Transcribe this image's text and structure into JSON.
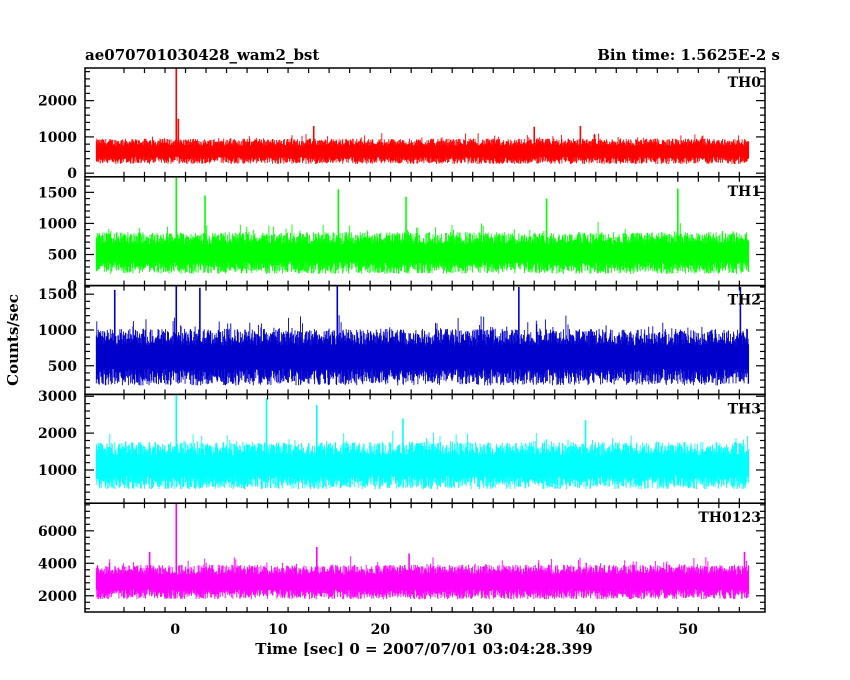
{
  "chart_data": {
    "type": "line",
    "title": "ae070701030428_wam2_bst",
    "subtitle": "Bin time: 1.5625E-2 s",
    "xlabel": "Time [sec] 0 = 2007/07/01 03:04:28.399",
    "ylabel": "Counts/sec",
    "xlim": [
      -8.8,
      57.5
    ],
    "x_ticks": [
      0,
      10,
      20,
      30,
      40,
      50
    ],
    "data_range_x": [
      -7.7,
      55.9
    ],
    "grid": false,
    "panels": [
      {
        "name": "TH0",
        "color": "#ff0000",
        "ylim": [
          -100,
          2900
        ],
        "y_ticks": [
          0,
          1000,
          2000
        ],
        "baseline": 620,
        "spread": 230,
        "floor": 150,
        "peaks": [
          {
            "x": 0.1,
            "y": 2900
          },
          {
            "x": 0.3,
            "y": 1500
          },
          {
            "x": 13.5,
            "y": 1300
          },
          {
            "x": 39.5,
            "y": 1300
          },
          {
            "x": 35.0,
            "y": 1280
          }
        ]
      },
      {
        "name": "TH1",
        "color": "#00ff00",
        "ylim": [
          0,
          1750
        ],
        "y_ticks": [
          0,
          500,
          1000,
          1500
        ],
        "baseline": 540,
        "spread": 220,
        "floor": 20,
        "peaks": [
          {
            "x": 0.1,
            "y": 1750
          },
          {
            "x": 2.9,
            "y": 1450
          },
          {
            "x": 15.9,
            "y": 1550
          },
          {
            "x": 22.5,
            "y": 1430
          },
          {
            "x": 36.2,
            "y": 1400
          },
          {
            "x": 49.0,
            "y": 1560
          }
        ]
      },
      {
        "name": "TH2",
        "color": "#0000cc",
        "ylim": [
          100,
          1620
        ],
        "y_ticks": [
          500,
          1000,
          1500
        ],
        "baseline": 640,
        "spread": 260,
        "floor": 140,
        "peaks": [
          {
            "x": 0.1,
            "y": 1620
          },
          {
            "x": -5.9,
            "y": 1560
          },
          {
            "x": 2.4,
            "y": 1590
          },
          {
            "x": 15.8,
            "y": 1610
          },
          {
            "x": 33.5,
            "y": 1600
          },
          {
            "x": 55.1,
            "y": 1600
          }
        ]
      },
      {
        "name": "TH3",
        "color": "#00ffff",
        "ylim": [
          100,
          3050
        ],
        "y_ticks": [
          1000,
          2000,
          3000
        ],
        "baseline": 1150,
        "spread": 420,
        "floor": 250,
        "peaks": [
          {
            "x": 0.1,
            "y": 3050
          },
          {
            "x": 8.9,
            "y": 2950
          },
          {
            "x": 13.8,
            "y": 2760
          },
          {
            "x": 22.2,
            "y": 2400
          },
          {
            "x": 40.0,
            "y": 2350
          }
        ]
      },
      {
        "name": "TH0123",
        "color": "#ff00ff",
        "ylim": [
          1000,
          7700
        ],
        "y_ticks": [
          2000,
          4000,
          6000
        ],
        "baseline": 2900,
        "spread": 700,
        "floor": 1300,
        "peaks": [
          {
            "x": 0.1,
            "y": 7700
          },
          {
            "x": 13.8,
            "y": 5000
          },
          {
            "x": -2.5,
            "y": 4700
          },
          {
            "x": 22.8,
            "y": 4600
          },
          {
            "x": 55.5,
            "y": 4700
          }
        ]
      }
    ]
  }
}
